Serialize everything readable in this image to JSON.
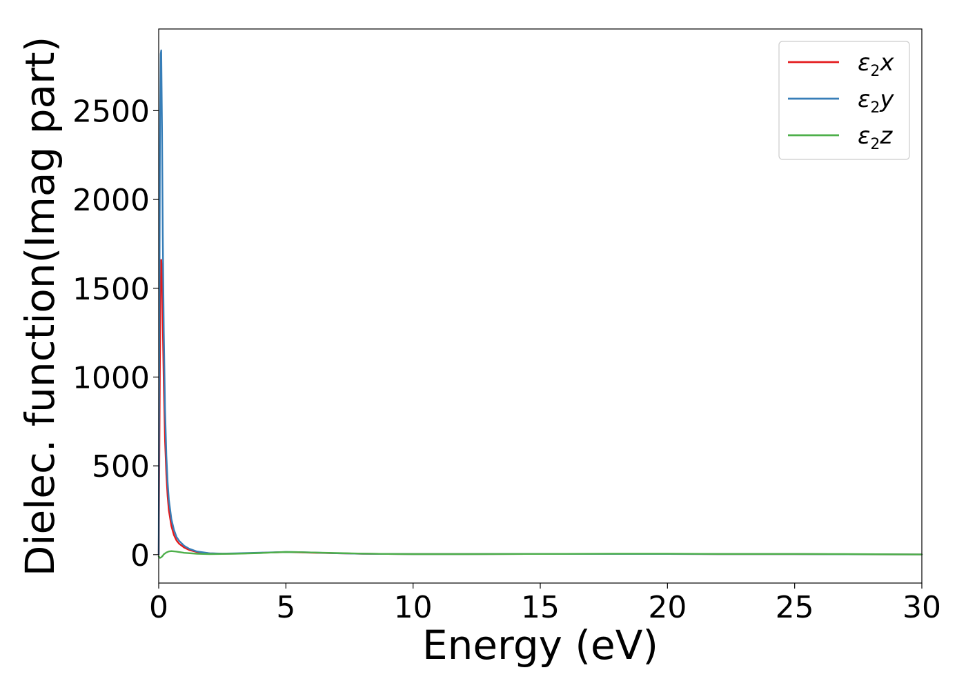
{
  "chart_data": {
    "type": "line",
    "xlabel": "Energy (eV)",
    "ylabel": "Dielec. function(Imag part)",
    "xlim": [
      0,
      30
    ],
    "ylim": [
      -160,
      2960
    ],
    "xticks": [
      0,
      5,
      10,
      15,
      20,
      25,
      30
    ],
    "yticks": [
      0,
      500,
      1000,
      1500,
      2000,
      2500
    ],
    "grid": false,
    "legend_position": "top-right",
    "series": [
      {
        "name": "ε2x",
        "legend": {
          "base": "ε",
          "sub": "2",
          "axis": "x"
        },
        "color": "#e41a1c",
        "x": [
          0.0,
          0.02,
          0.05,
          0.08,
          0.1,
          0.13,
          0.16,
          0.2,
          0.25,
          0.3,
          0.35,
          0.4,
          0.5,
          0.6,
          0.7,
          0.8,
          1.0,
          1.2,
          1.5,
          2.0,
          2.5,
          3.0,
          3.5,
          4.0,
          4.5,
          5.0,
          5.5,
          6.0,
          7.0,
          8.0,
          9.0,
          10.0,
          12.0,
          15.0,
          18.0,
          20.0,
          22.0,
          25.0,
          27.0,
          30.0
        ],
        "y": [
          0,
          400,
          1100,
          1500,
          1660,
          1620,
          1300,
          950,
          640,
          450,
          330,
          250,
          160,
          110,
          80,
          62,
          40,
          26,
          15,
          7,
          5,
          6,
          8,
          10,
          12,
          14,
          13,
          11,
          8,
          5,
          4,
          3,
          3,
          4,
          4,
          4,
          3,
          3,
          2,
          1
        ]
      },
      {
        "name": "ε2y",
        "legend": {
          "base": "ε",
          "sub": "2",
          "axis": "y"
        },
        "color": "#377eb8",
        "x": [
          0.0,
          0.02,
          0.05,
          0.08,
          0.1,
          0.13,
          0.16,
          0.2,
          0.25,
          0.3,
          0.35,
          0.4,
          0.5,
          0.6,
          0.7,
          0.8,
          1.0,
          1.2,
          1.5,
          2.0,
          2.5,
          3.0,
          3.5,
          4.0,
          4.5,
          5.0,
          5.5,
          6.0,
          7.0,
          8.0,
          9.0,
          10.0,
          12.0,
          15.0,
          18.0,
          20.0,
          22.0,
          25.0,
          27.0,
          30.0
        ],
        "y": [
          0,
          1000,
          2300,
          2820,
          2840,
          2400,
          1800,
          1250,
          820,
          560,
          410,
          310,
          200,
          140,
          100,
          78,
          50,
          33,
          18,
          8,
          6,
          7,
          9,
          11,
          13,
          15,
          14,
          12,
          8,
          5,
          4,
          3,
          3,
          4,
          4,
          4,
          3,
          3,
          2,
          1
        ]
      },
      {
        "name": "ε2z",
        "legend": {
          "base": "ε",
          "sub": "2",
          "axis": "z"
        },
        "color": "#4daf4a",
        "x": [
          0.0,
          0.05,
          0.1,
          0.15,
          0.2,
          0.3,
          0.4,
          0.5,
          0.7,
          1.0,
          1.5,
          2.0,
          3.0,
          4.0,
          4.5,
          5.0,
          5.5,
          6.0,
          7.0,
          8.0,
          9.0,
          10.0,
          12.0,
          15.0,
          18.0,
          20.0,
          22.0,
          25.0,
          27.0,
          30.0
        ],
        "y": [
          -10,
          -18,
          -15,
          -8,
          2,
          12,
          18,
          20,
          17,
          10,
          5,
          3,
          5,
          9,
          12,
          15,
          14,
          12,
          9,
          6,
          4,
          3,
          3,
          4,
          5,
          5,
          4,
          4,
          3,
          1
        ]
      }
    ]
  }
}
